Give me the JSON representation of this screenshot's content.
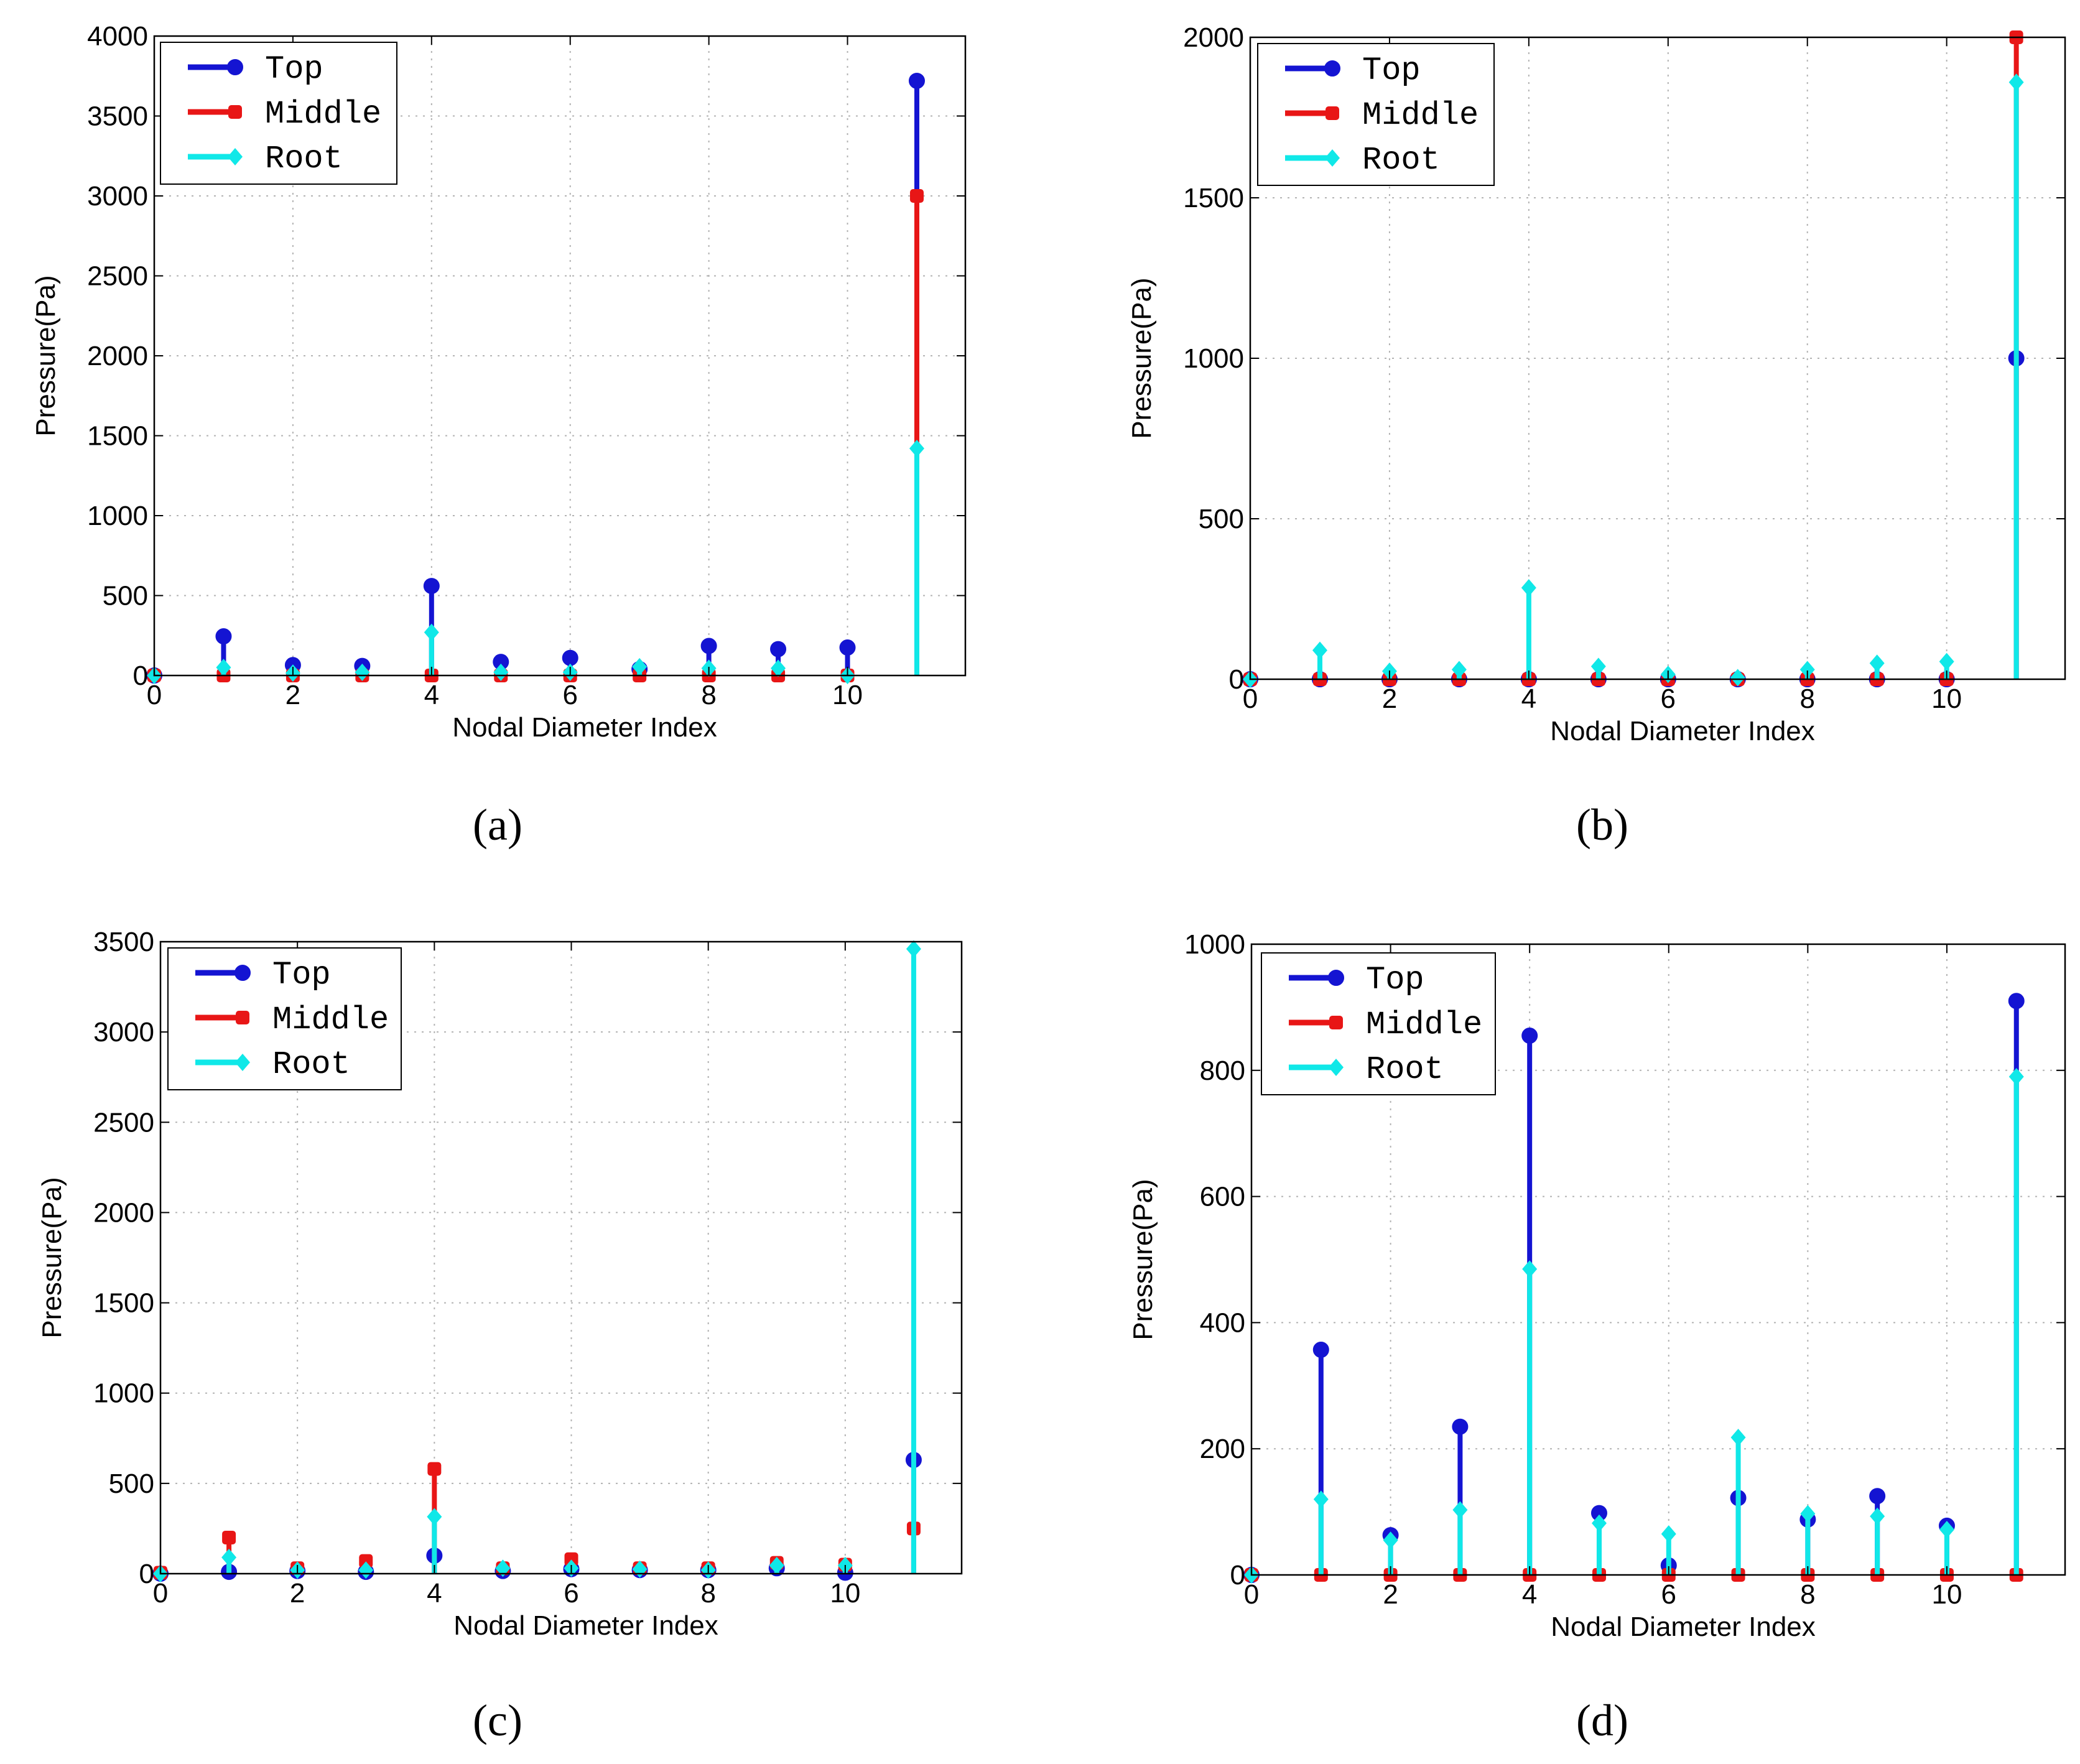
{
  "figure": {
    "captions": [
      "(a)",
      "(b)",
      "(c)",
      "(d)"
    ]
  },
  "colors": {
    "Top": "#1414d2",
    "Middle": "#e81616",
    "Root": "#10e8e8",
    "grid": "#b3b3b3",
    "axis": "#000000"
  },
  "chart_data": [
    {
      "id": "a",
      "type": "stem",
      "caption": "(a)",
      "xlabel": "Nodal Diameter Index",
      "ylabel": "Pressure(Pa)",
      "xlim": [
        0,
        11.7
      ],
      "ylim": [
        0,
        4000
      ],
      "xticks": [
        0,
        2,
        4,
        6,
        8,
        10
      ],
      "yticks": [
        0,
        500,
        1000,
        1500,
        2000,
        2500,
        3000,
        3500,
        4000
      ],
      "grid": true,
      "legend": "top-left",
      "x": [
        0,
        1,
        2,
        3,
        4,
        5,
        6,
        7,
        8,
        9,
        10,
        11
      ],
      "series": [
        {
          "name": "Top",
          "values": [
            0,
            245,
            65,
            60,
            560,
            85,
            110,
            40,
            185,
            165,
            175,
            3720
          ]
        },
        {
          "name": "Middle",
          "values": [
            0,
            0,
            0,
            0,
            0,
            0,
            0,
            0,
            0,
            0,
            0,
            3000
          ]
        },
        {
          "name": "Root",
          "values": [
            0,
            50,
            15,
            20,
            270,
            20,
            20,
            55,
            45,
            45,
            0,
            1420
          ]
        }
      ]
    },
    {
      "id": "b",
      "type": "stem",
      "caption": "(b)",
      "xlabel": "Nodal Diameter Index",
      "ylabel": "Pressure(Pa)",
      "xlim": [
        0,
        11.7
      ],
      "ylim": [
        0,
        2000
      ],
      "xticks": [
        0,
        2,
        4,
        6,
        8,
        10
      ],
      "yticks": [
        0,
        500,
        1000,
        1500,
        2000
      ],
      "grid": true,
      "legend": "top-left",
      "x": [
        0,
        1,
        2,
        3,
        4,
        5,
        6,
        7,
        8,
        9,
        10,
        11
      ],
      "series": [
        {
          "name": "Top",
          "values": [
            0,
            0,
            0,
            0,
            0,
            0,
            0,
            0,
            0,
            0,
            0,
            1000
          ]
        },
        {
          "name": "Middle",
          "values": [
            0,
            0,
            0,
            0,
            0,
            0,
            0,
            0,
            0,
            0,
            0,
            2000
          ]
        },
        {
          "name": "Root",
          "values": [
            0,
            90,
            25,
            30,
            285,
            40,
            15,
            5,
            30,
            50,
            55,
            1860
          ]
        }
      ]
    },
    {
      "id": "c",
      "type": "stem",
      "caption": "(c)",
      "xlabel": "Nodal Diameter Index",
      "ylabel": "Pressure(Pa)",
      "xlim": [
        0,
        11.7
      ],
      "ylim": [
        0,
        3500
      ],
      "xticks": [
        0,
        2,
        4,
        6,
        8,
        10
      ],
      "yticks": [
        0,
        500,
        1000,
        1500,
        2000,
        2500,
        3000,
        3500
      ],
      "grid": true,
      "legend": "top-left",
      "x": [
        0,
        1,
        2,
        3,
        4,
        5,
        6,
        7,
        8,
        9,
        10,
        11
      ],
      "series": [
        {
          "name": "Top",
          "values": [
            0,
            10,
            15,
            10,
            100,
            15,
            25,
            20,
            20,
            30,
            5,
            630
          ]
        },
        {
          "name": "Middle",
          "values": [
            5,
            200,
            30,
            70,
            580,
            30,
            80,
            30,
            30,
            60,
            50,
            250
          ]
        },
        {
          "name": "Root",
          "values": [
            0,
            90,
            20,
            20,
            315,
            30,
            30,
            25,
            20,
            45,
            45,
            3460
          ]
        }
      ]
    },
    {
      "id": "d",
      "type": "stem",
      "caption": "(d)",
      "xlabel": "Nodal Diameter Index",
      "ylabel": "Pressure(Pa)",
      "xlim": [
        0,
        11.7
      ],
      "ylim": [
        0,
        1000
      ],
      "xticks": [
        0,
        2,
        4,
        6,
        8,
        10
      ],
      "yticks": [
        0,
        200,
        400,
        600,
        800,
        1000
      ],
      "grid": true,
      "legend": "top-left",
      "x": [
        0,
        1,
        2,
        3,
        4,
        5,
        6,
        7,
        8,
        9,
        10,
        11
      ],
      "series": [
        {
          "name": "Top",
          "values": [
            0,
            357,
            63,
            235,
            855,
            98,
            15,
            122,
            88,
            125,
            78,
            910
          ]
        },
        {
          "name": "Middle",
          "values": [
            0,
            0,
            0,
            0,
            0,
            0,
            0,
            0,
            0,
            0,
            0,
            0
          ]
        },
        {
          "name": "Root",
          "values": [
            0,
            120,
            55,
            103,
            485,
            82,
            65,
            218,
            97,
            93,
            72,
            790
          ]
        }
      ]
    }
  ]
}
